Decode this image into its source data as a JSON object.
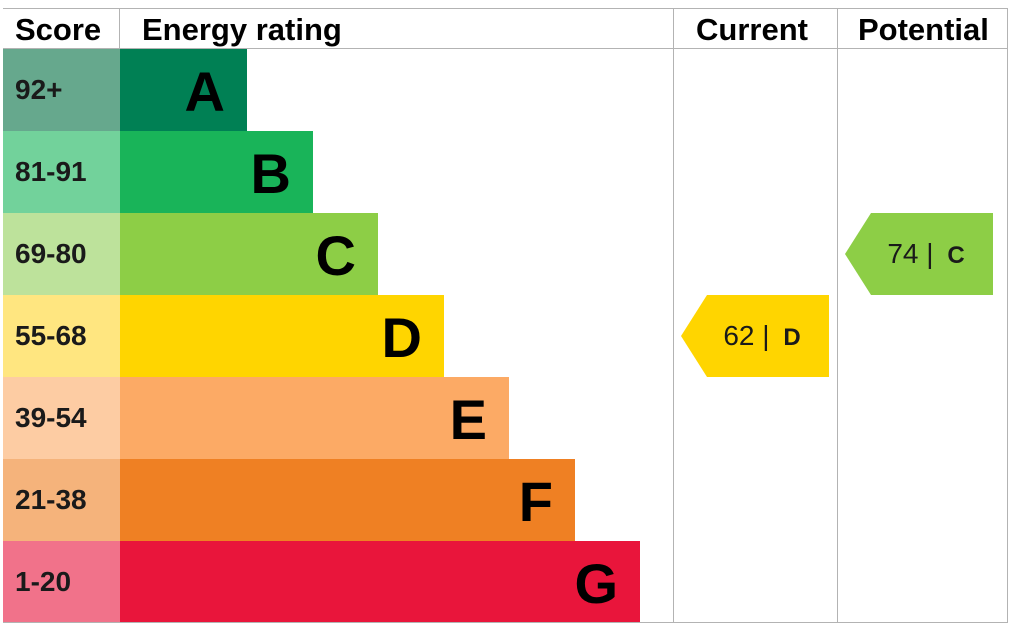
{
  "chart_data": {
    "type": "bar",
    "title": "",
    "headers": {
      "score": "Score",
      "rating": "Energy rating",
      "current": "Current",
      "potential": "Potential"
    },
    "bands": [
      {
        "score": "92+",
        "letter": "A",
        "color": "#008054",
        "score_color": "#66a88d"
      },
      {
        "score": "81-91",
        "letter": "B",
        "color": "#19b459",
        "score_color": "#72d29b"
      },
      {
        "score": "69-80",
        "letter": "C",
        "color": "#8dce46",
        "score_color": "#bde29b"
      },
      {
        "score": "55-68",
        "letter": "D",
        "color": "#ffd500",
        "score_color": "#ffe680"
      },
      {
        "score": "39-54",
        "letter": "E",
        "color": "#fcaa65",
        "score_color": "#fdcca3"
      },
      {
        "score": "21-38",
        "letter": "F",
        "color": "#ef8023",
        "score_color": "#f5b37b"
      },
      {
        "score": "1-20",
        "letter": "G",
        "color": "#e9153b",
        "score_color": "#f1728a"
      }
    ],
    "current": {
      "value": 62,
      "letter": "D",
      "separator": "|",
      "color": "#ffd500"
    },
    "potential": {
      "value": 74,
      "letter": "C",
      "separator": "|",
      "color": "#8dce46"
    }
  }
}
